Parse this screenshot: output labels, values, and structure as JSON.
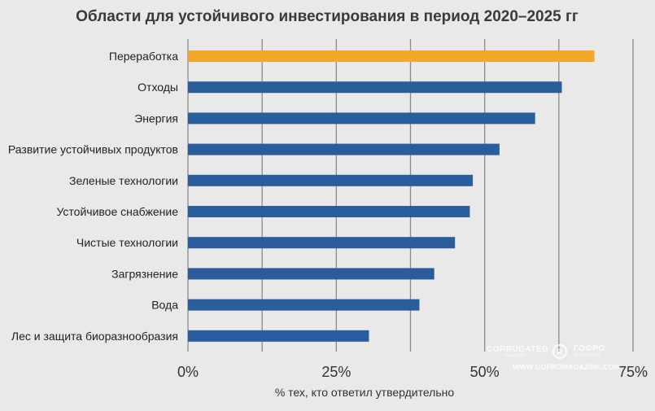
{
  "chart_data": {
    "type": "bar",
    "orientation": "horizontal",
    "title": "Области для устойчивого инвестирования в период 2020–2025 гг",
    "xlabel": "% тех, кто ответил утвердительно",
    "ylabel": "",
    "xlim": [
      0,
      75
    ],
    "x_ticks": [
      0,
      12.5,
      25,
      37.5,
      50,
      62.5,
      75
    ],
    "x_tick_labels": [
      "0%",
      "",
      "25%",
      "",
      "50%",
      "",
      "75%"
    ],
    "grid": "vertical",
    "categories": [
      "Переработка",
      "Отходы",
      "Энергия",
      "Развитие устойчивых продуктов",
      "Зеленые технологии",
      "Устойчивое снабжение",
      "Чистые технологии",
      "Загрязнение",
      "Вода",
      "Лес и защита биоразнообразия"
    ],
    "values": [
      68.5,
      63,
      58.5,
      52.5,
      48,
      47.5,
      45,
      41.5,
      39,
      30.5
    ],
    "highlight_index": 0,
    "colors": {
      "bar": "#2a5d9c",
      "highlight": "#f3a82c",
      "grid": "#8a8a8a",
      "background": "#e9e9e9"
    }
  },
  "watermark": {
    "brand_top": "CORRUGATED",
    "brand_bottom": "INDUSTRY",
    "brand_ru": "ГОФРО",
    "brand_ru_sub": "ИНДУСТРИЯ",
    "url": "WWW.GOFROMAGAZINE.COM"
  }
}
